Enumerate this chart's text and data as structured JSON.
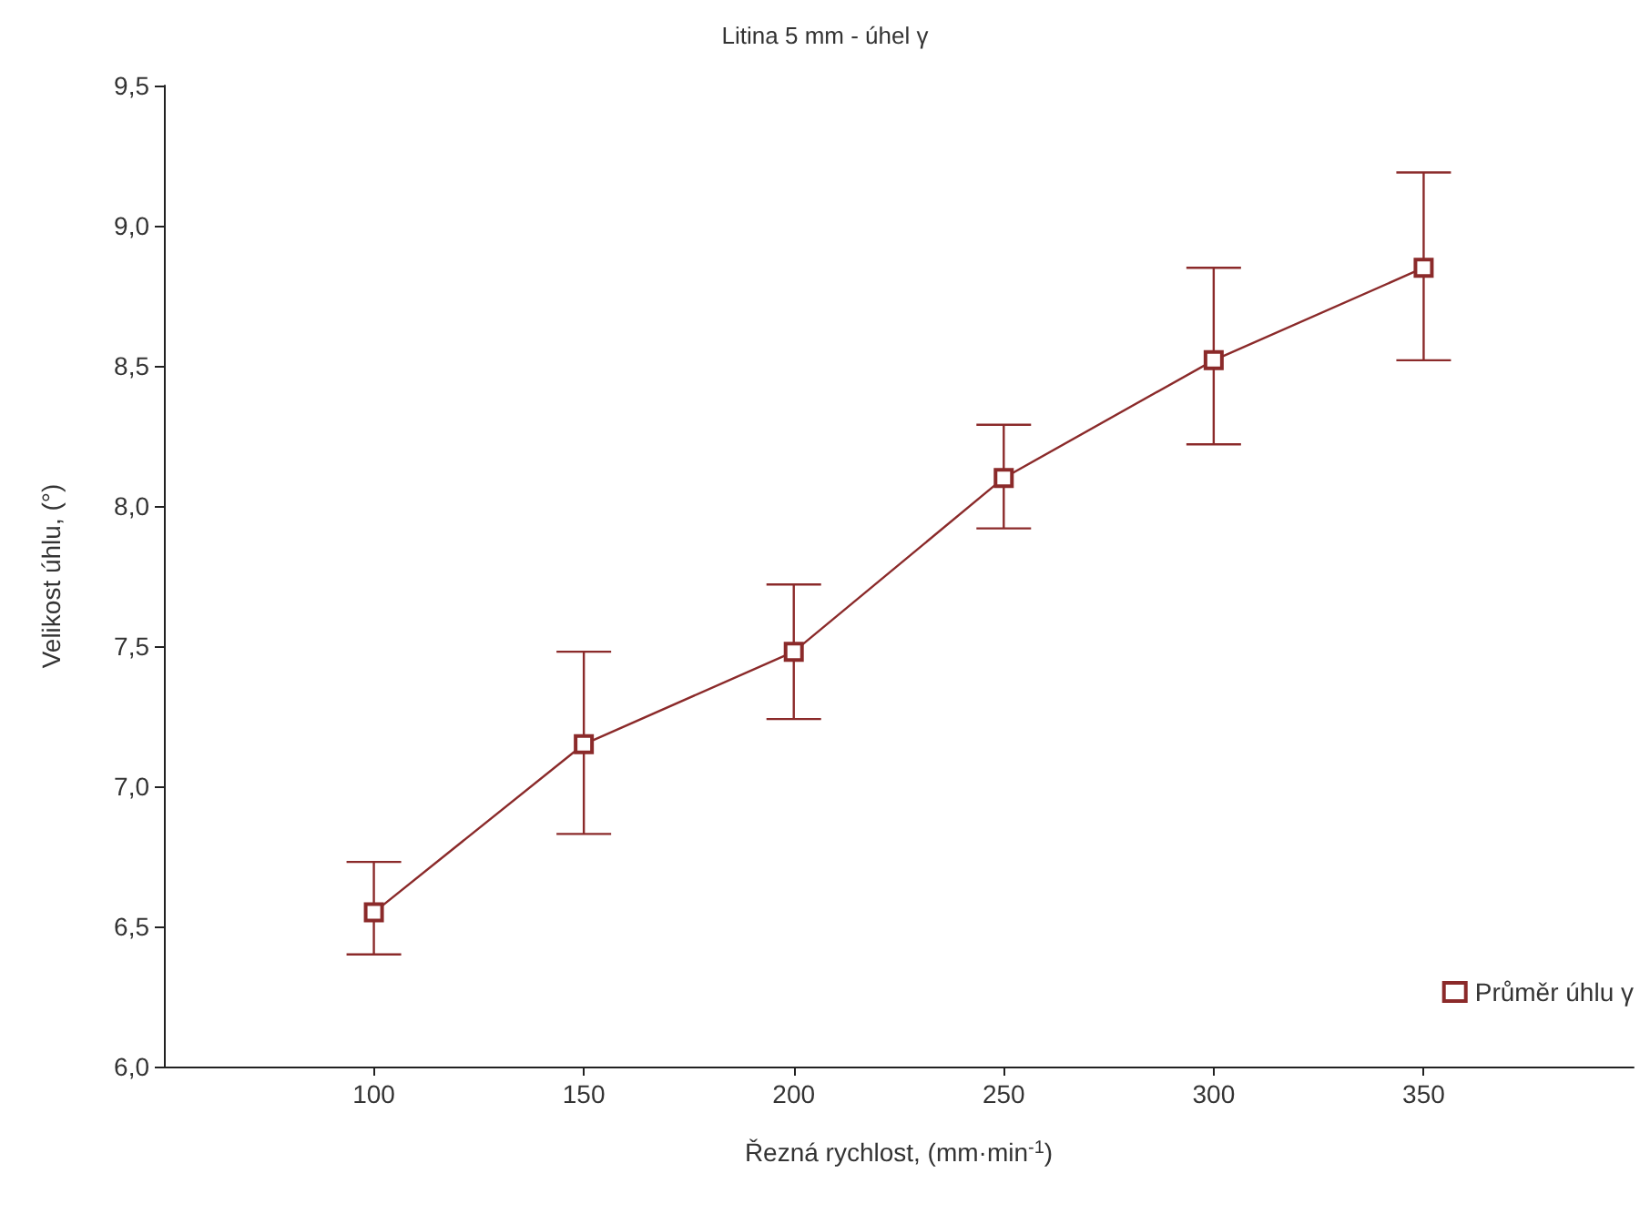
{
  "chart_data": {
    "type": "line",
    "title": "Litina 5 mm - úhel γ",
    "xlabel": "Řezná rychlost, (mm·min$^{-1}$)",
    "ylabel": "Velikost úhlu, (°)",
    "x": [
      100,
      150,
      200,
      250,
      300,
      350
    ],
    "series": [
      {
        "name": "Průměr úhlu γ",
        "color": "#8b2a2a",
        "values": [
          6.55,
          7.15,
          7.48,
          8.1,
          8.52,
          8.85
        ],
        "errors": [
          [
            6.4,
            6.73
          ],
          [
            6.83,
            7.48
          ],
          [
            7.24,
            7.72
          ],
          [
            7.92,
            8.29
          ],
          [
            8.22,
            8.85
          ],
          [
            8.52,
            9.19
          ]
        ]
      }
    ],
    "xlim": [
      50,
      400
    ],
    "xticks": [
      100,
      150,
      200,
      250,
      300,
      350
    ],
    "ylim": [
      6,
      9.5
    ],
    "yticks": [
      {
        "value": 6,
        "label": "6,0"
      },
      {
        "value": 6.5,
        "label": "6,5"
      },
      {
        "value": 7,
        "label": "7,0"
      },
      {
        "value": 7.5,
        "label": "7,5"
      },
      {
        "value": 8,
        "label": "8,0"
      },
      {
        "value": 8.5,
        "label": "8,5"
      },
      {
        "value": 9,
        "label": "9,0"
      },
      {
        "value": 9.5,
        "label": "9,5"
      }
    ],
    "grid": false,
    "legend": "bottom right",
    "marker": "square",
    "line_style": "solid"
  }
}
